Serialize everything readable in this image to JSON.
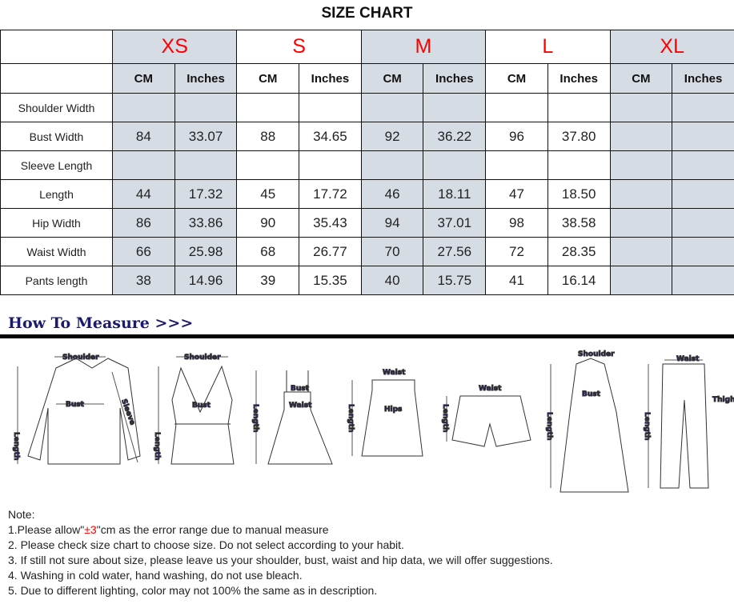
{
  "title": "SIZE CHART",
  "sizes": [
    "XS",
    "S",
    "M",
    "L",
    "XL"
  ],
  "units": [
    "CM",
    "Inches"
  ],
  "shaded_sizes": [
    "XS",
    "M",
    "XL"
  ],
  "colors": {
    "size_label": "#ff0000",
    "shaded": "#d6dce4",
    "heading": "#1a1a6e"
  },
  "rows": [
    {
      "label": "Shoulder Width",
      "values": [
        "",
        "",
        "",
        "",
        "",
        "",
        "",
        "",
        "",
        ""
      ]
    },
    {
      "label": "Bust Width",
      "values": [
        "84",
        "33.07",
        "88",
        "34.65",
        "92",
        "36.22",
        "96",
        "37.80",
        "",
        ""
      ]
    },
    {
      "label": "Sleeve Length",
      "values": [
        "",
        "",
        "",
        "",
        "",
        "",
        "",
        "",
        "",
        ""
      ]
    },
    {
      "label": "Length",
      "values": [
        "44",
        "17.32",
        "45",
        "17.72",
        "46",
        "18.11",
        "47",
        "18.50",
        "",
        ""
      ]
    },
    {
      "label": "Hip Width",
      "values": [
        "86",
        "33.86",
        "90",
        "35.43",
        "94",
        "37.01",
        "98",
        "38.58",
        "",
        ""
      ]
    },
    {
      "label": "Waist Width",
      "values": [
        "66",
        "25.98",
        "68",
        "26.77",
        "70",
        "27.56",
        "72",
        "28.35",
        "",
        ""
      ]
    },
    {
      "label": "Pants length",
      "values": [
        "38",
        "14.96",
        "39",
        "15.35",
        "40",
        "15.75",
        "41",
        "16.14",
        "",
        ""
      ]
    }
  ],
  "how_to_measure": "How To Measure >>>",
  "figure_labels": {
    "shoulder": "Shoulder",
    "bust": "Bust",
    "sleeve": "Sleeve",
    "length": "Length",
    "waist": "Waist",
    "hips": "Hips",
    "thigh": "Thigh"
  },
  "notes": {
    "heading": "Note:",
    "line1_pre": "1.Please allow\"",
    "line1_red": "±3",
    "line1_post": "\"cm as the error range due to manual measure",
    "line2": "2. Please check size chart to choose size. Do not select according to your habit.",
    "line3": "3. If still not sure about size, please leave us your shoulder, bust, waist and hip data, we will offer suggestions.",
    "line4": "4. Washing in cold water, hand washing, do not use bleach.",
    "line5": "5. Due to different lighting, color may not 100% the same as in description."
  }
}
